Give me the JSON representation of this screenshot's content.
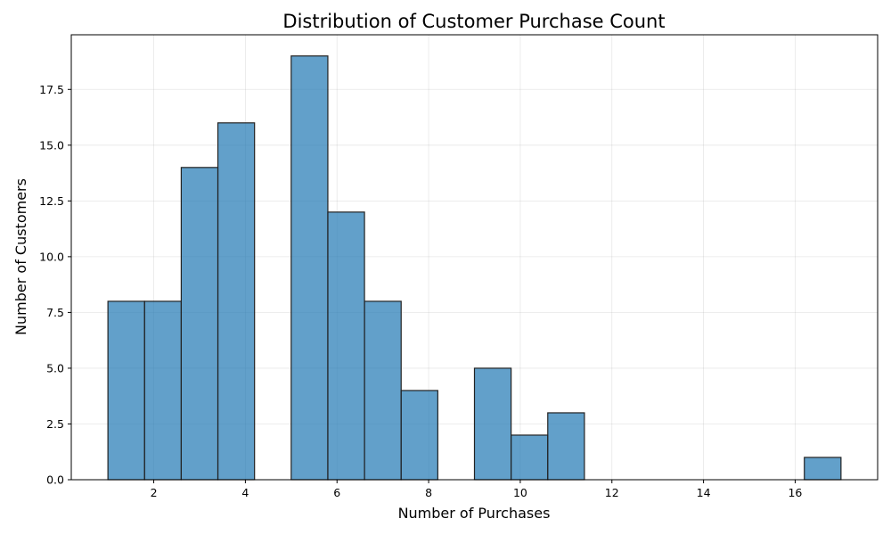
{
  "chart_data": {
    "type": "bar",
    "title": "Distribution of Customer Purchase Count",
    "xlabel": "Number of Purchases",
    "ylabel": "Number of Customers",
    "bin_edges": [
      1.0,
      1.8,
      2.6,
      3.4,
      4.2,
      5.0,
      5.8,
      6.6,
      7.4,
      8.2,
      9.0,
      9.8,
      10.6,
      11.4,
      12.2,
      13.0,
      13.8,
      14.6,
      15.4,
      16.2,
      17.0
    ],
    "values": [
      8,
      8,
      14,
      16,
      0,
      19,
      12,
      8,
      4,
      0,
      5,
      2,
      3,
      0,
      0,
      0,
      0,
      0,
      0,
      1
    ],
    "xlim": [
      0.2,
      17.8
    ],
    "ylim": [
      0,
      19.95
    ],
    "xticks": [
      2,
      4,
      6,
      8,
      10,
      12,
      14,
      16
    ],
    "xtick_labels": [
      "2",
      "4",
      "6",
      "8",
      "10",
      "12",
      "14",
      "16"
    ],
    "yticks": [
      0,
      2.5,
      5,
      7.5,
      10,
      12.5,
      15,
      17.5
    ],
    "ytick_labels": [
      "0.0",
      "2.5",
      "5.0",
      "7.5",
      "10.0",
      "12.5",
      "15.0",
      "17.5"
    ],
    "grid": true,
    "bar_color": "#1f77b4",
    "bar_alpha": 0.7,
    "edge_color": "#222222"
  }
}
